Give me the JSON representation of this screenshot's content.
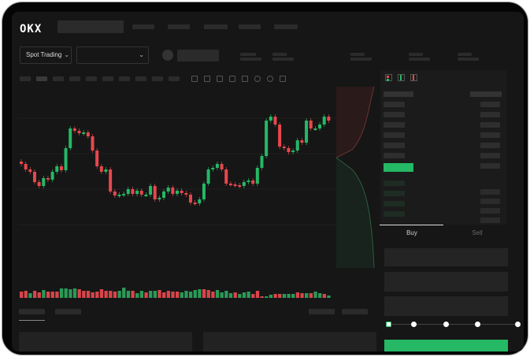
{
  "header": {
    "logo": "OKX",
    "market_select": "Spot Trading"
  },
  "trade": {
    "tabs": [
      "Buy",
      "Sell"
    ],
    "active_tab": "Buy",
    "slider_percent": 0
  },
  "colors": {
    "up": "#25b865",
    "down": "#e5484d",
    "background": "#161616",
    "accent": "#25b865"
  },
  "chart_data": {
    "type": "candlestick",
    "close": [
      95,
      88,
      85,
      72,
      67,
      77,
      75,
      85,
      92,
      87,
      115,
      140,
      137,
      134,
      135,
      130,
      112,
      92,
      85,
      88,
      60,
      55,
      56,
      57,
      63,
      57,
      61,
      56,
      56,
      67,
      50,
      52,
      60,
      65,
      57,
      61,
      58,
      56,
      46,
      45,
      50,
      70,
      88,
      90,
      95,
      88,
      70,
      69,
      68,
      67,
      72,
      74,
      70,
      90,
      105,
      150,
      155,
      145,
      117,
      115,
      110,
      112,
      125,
      122,
      150,
      140,
      140,
      145,
      155,
      150
    ],
    "volume": [
      8,
      9,
      6,
      9,
      7,
      10,
      8,
      8,
      8,
      12,
      12,
      11,
      12,
      11,
      9,
      9,
      7,
      8,
      11,
      9,
      9,
      8,
      9,
      13,
      9,
      9,
      6,
      9,
      7,
      9,
      9,
      10,
      7,
      9,
      8,
      8,
      7,
      9,
      8,
      10,
      11,
      11,
      10,
      8,
      10,
      7,
      9,
      6,
      7,
      5,
      7,
      8,
      5,
      9,
      2,
      2,
      4,
      5,
      5,
      5,
      5,
      5,
      7,
      6,
      6,
      6,
      8,
      6,
      5,
      3
    ],
    "volume_up": [
      0,
      0,
      1,
      0,
      0,
      1,
      0,
      0,
      0,
      1,
      1,
      1,
      1,
      0,
      0,
      0,
      0,
      0,
      0,
      0,
      0,
      0,
      1,
      1,
      1,
      0,
      1,
      1,
      0,
      1,
      1,
      0,
      0,
      0,
      0,
      0,
      1,
      1,
      1,
      1,
      1,
      0,
      0,
      0,
      1,
      1,
      1,
      1,
      0,
      1,
      1,
      1,
      0,
      0,
      0,
      1,
      1,
      0,
      0,
      1,
      1,
      1,
      0,
      0,
      1,
      0,
      1,
      1,
      0,
      1
    ]
  }
}
